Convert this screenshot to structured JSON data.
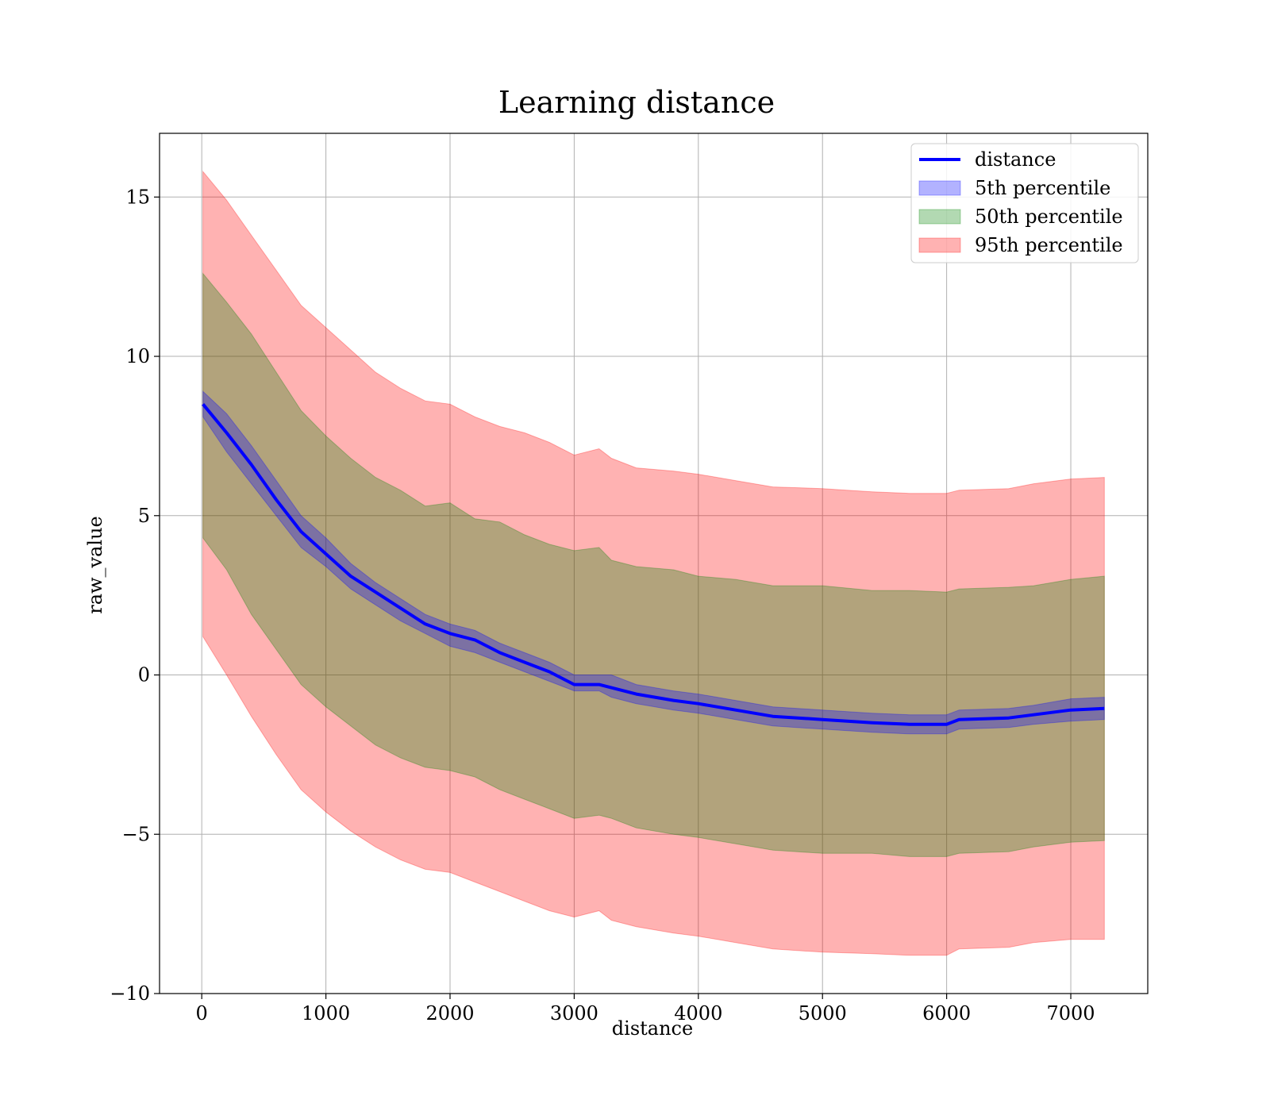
{
  "chart_data": {
    "type": "area",
    "title": "Learning distance",
    "xlabel": "distance",
    "ylabel": "raw_value",
    "xlim": [
      -340,
      7620
    ],
    "ylim": [
      -10,
      17
    ],
    "xticks": [
      0,
      1000,
      2000,
      3000,
      4000,
      5000,
      6000,
      7000
    ],
    "yticks": [
      -10,
      -5,
      0,
      5,
      10,
      15
    ],
    "xtick_labels": [
      "0",
      "1000",
      "2000",
      "3000",
      "4000",
      "5000",
      "6000",
      "7000"
    ],
    "ytick_labels": [
      "−10",
      "−5",
      "0",
      "5",
      "10",
      "15"
    ],
    "grid": true,
    "legend_position": "top-right",
    "legend": [
      {
        "label": "distance",
        "kind": "line",
        "color": "#0000ff"
      },
      {
        "label": "5th percentile",
        "kind": "patch",
        "color": "#0000ff",
        "alpha": 0.3
      },
      {
        "label": "50th percentile",
        "kind": "patch",
        "color": "#008000",
        "alpha": 0.3
      },
      {
        "label": "95th percentile",
        "kind": "patch",
        "color": "#ff0000",
        "alpha": 0.3
      }
    ],
    "x": [
      10,
      200,
      400,
      600,
      800,
      1000,
      1200,
      1400,
      1600,
      1800,
      2000,
      2200,
      2400,
      2600,
      2800,
      3000,
      3200,
      3300,
      3500,
      3800,
      4000,
      4300,
      4600,
      5000,
      5400,
      5700,
      6000,
      6100,
      6500,
      6700,
      7000,
      7270
    ],
    "series": [
      {
        "name": "distance",
        "color": "#0000ff",
        "values": [
          8.5,
          7.6,
          6.6,
          5.5,
          4.5,
          3.8,
          3.1,
          2.6,
          2.1,
          1.6,
          1.3,
          1.1,
          0.7,
          0.4,
          0.1,
          -0.3,
          -0.3,
          -0.4,
          -0.6,
          -0.8,
          -0.9,
          -1.1,
          -1.3,
          -1.4,
          -1.5,
          -1.55,
          -1.55,
          -1.4,
          -1.35,
          -1.25,
          -1.1,
          -1.05
        ]
      },
      {
        "name": "5th percentile",
        "color": "#0000ff",
        "alpha": 0.3,
        "lower": [
          8.1,
          7.0,
          6.0,
          5.0,
          4.0,
          3.4,
          2.7,
          2.2,
          1.7,
          1.3,
          0.9,
          0.7,
          0.4,
          0.1,
          -0.2,
          -0.5,
          -0.5,
          -0.7,
          -0.9,
          -1.1,
          -1.2,
          -1.4,
          -1.6,
          -1.7,
          -1.8,
          -1.85,
          -1.85,
          -1.7,
          -1.65,
          -1.55,
          -1.45,
          -1.4
        ],
        "upper": [
          8.9,
          8.2,
          7.2,
          6.1,
          5.0,
          4.3,
          3.5,
          2.9,
          2.4,
          1.9,
          1.6,
          1.4,
          1.0,
          0.7,
          0.4,
          0.0,
          0.0,
          0.0,
          -0.3,
          -0.5,
          -0.6,
          -0.8,
          -1.0,
          -1.1,
          -1.2,
          -1.25,
          -1.25,
          -1.1,
          -1.05,
          -0.95,
          -0.75,
          -0.7
        ]
      },
      {
        "name": "50th percentile",
        "color": "#008000",
        "alpha": 0.3,
        "lower": [
          4.3,
          3.3,
          1.9,
          0.8,
          -0.3,
          -1.0,
          -1.6,
          -2.2,
          -2.6,
          -2.9,
          -3.0,
          -3.2,
          -3.6,
          -3.9,
          -4.2,
          -4.5,
          -4.4,
          -4.5,
          -4.8,
          -5.0,
          -5.1,
          -5.3,
          -5.5,
          -5.6,
          -5.6,
          -5.7,
          -5.7,
          -5.6,
          -5.55,
          -5.4,
          -5.25,
          -5.2
        ],
        "upper": [
          12.6,
          11.7,
          10.7,
          9.5,
          8.3,
          7.5,
          6.8,
          6.2,
          5.8,
          5.3,
          5.4,
          4.9,
          4.8,
          4.4,
          4.1,
          3.9,
          4.0,
          3.6,
          3.4,
          3.3,
          3.1,
          3.0,
          2.8,
          2.8,
          2.65,
          2.65,
          2.6,
          2.7,
          2.75,
          2.8,
          3.0,
          3.1
        ]
      },
      {
        "name": "95th percentile",
        "color": "#ff0000",
        "alpha": 0.3,
        "lower": [
          1.2,
          0.0,
          -1.3,
          -2.5,
          -3.6,
          -4.3,
          -4.9,
          -5.4,
          -5.8,
          -6.1,
          -6.2,
          -6.5,
          -6.8,
          -7.1,
          -7.4,
          -7.6,
          -7.4,
          -7.7,
          -7.9,
          -8.1,
          -8.2,
          -8.4,
          -8.6,
          -8.7,
          -8.75,
          -8.8,
          -8.8,
          -8.6,
          -8.55,
          -8.4,
          -8.3,
          -8.3
        ],
        "upper": [
          15.8,
          14.9,
          13.8,
          12.7,
          11.6,
          10.9,
          10.2,
          9.5,
          9.0,
          8.6,
          8.5,
          8.1,
          7.8,
          7.6,
          7.3,
          6.9,
          7.1,
          6.8,
          6.5,
          6.4,
          6.3,
          6.1,
          5.9,
          5.85,
          5.75,
          5.7,
          5.7,
          5.8,
          5.85,
          6.0,
          6.15,
          6.2
        ]
      }
    ]
  }
}
